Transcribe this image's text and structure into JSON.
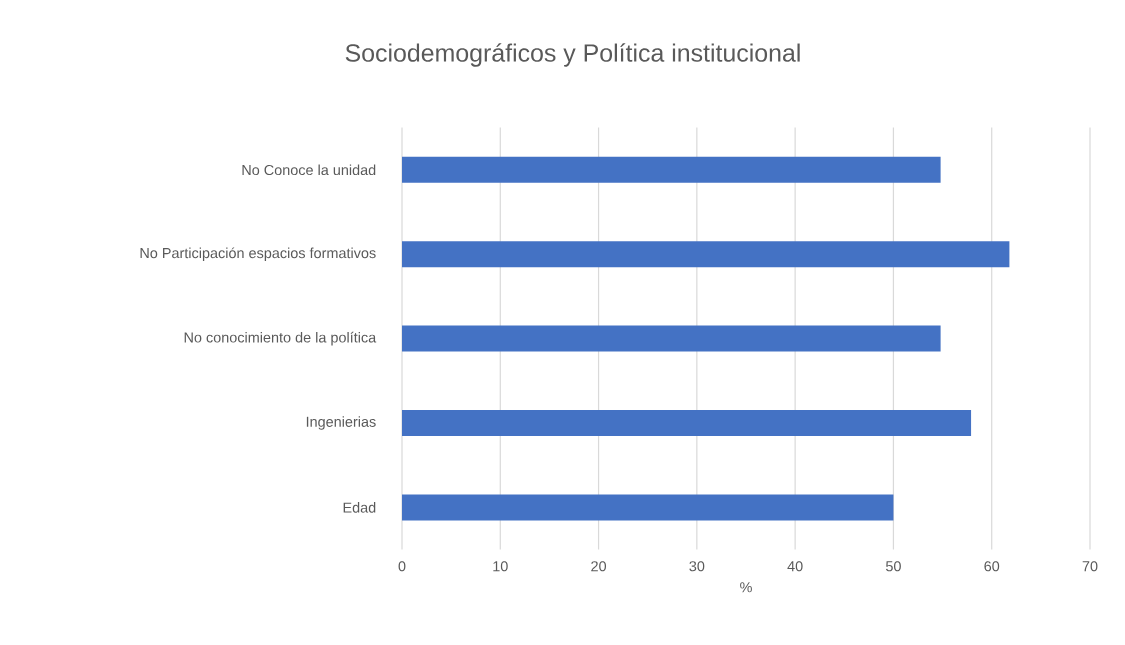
{
  "chart_data": {
    "type": "bar",
    "orientation": "horizontal",
    "title": "Sociodemográficos y Política institucional",
    "xlabel": "%",
    "categories": [
      "No Conoce la unidad",
      "No Participación espacios formativos",
      "No conocimiento de la política",
      "Ingenierias",
      "Edad"
    ],
    "values": [
      54.8,
      61.8,
      54.8,
      57.9,
      50
    ],
    "color": "#4472c4",
    "xlim": [
      0,
      70
    ],
    "xticks": [
      0,
      10,
      20,
      30,
      40,
      50,
      60,
      70
    ],
    "grid": "x"
  }
}
